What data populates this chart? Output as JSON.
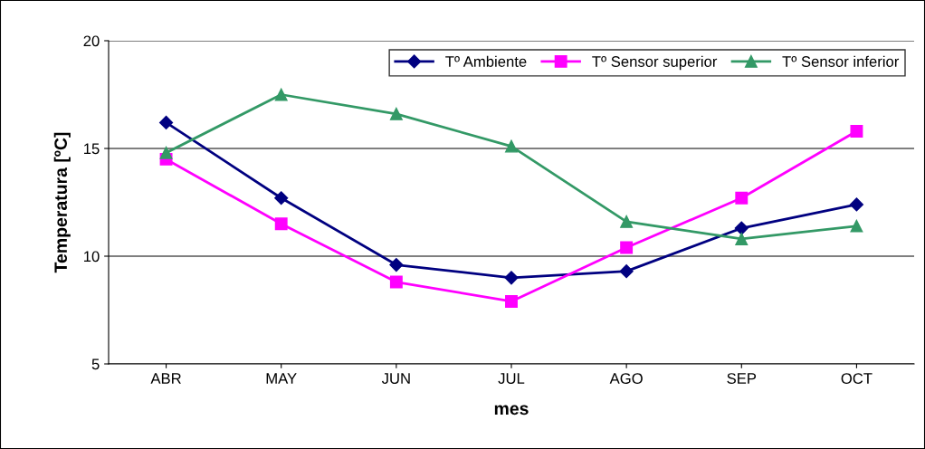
{
  "chart_data": {
    "type": "line",
    "xlabel": "mes",
    "ylabel": "Temperatura [ºC]",
    "categories": [
      "ABR",
      "MAY",
      "JUN",
      "JUL",
      "AGO",
      "SEP",
      "OCT"
    ],
    "series": [
      {
        "name": "Tº Ambiente",
        "color": "#000080",
        "marker": "diamond",
        "values": [
          16.2,
          12.7,
          9.6,
          9.0,
          9.3,
          11.3,
          12.4
        ]
      },
      {
        "name": "Tº Sensor superior",
        "color": "#ff00ff",
        "marker": "square",
        "values": [
          14.5,
          11.5,
          8.8,
          7.9,
          10.4,
          12.7,
          15.8
        ]
      },
      {
        "name": "Tº Sensor inferior",
        "color": "#339966",
        "marker": "triangle",
        "values": [
          14.8,
          17.5,
          16.6,
          15.1,
          11.6,
          10.8,
          11.4
        ]
      }
    ],
    "ylim": [
      5,
      20
    ],
    "yticks": [
      5,
      10,
      15,
      20
    ],
    "grid": "y",
    "legend": "top right",
    "line_style": "solid"
  }
}
